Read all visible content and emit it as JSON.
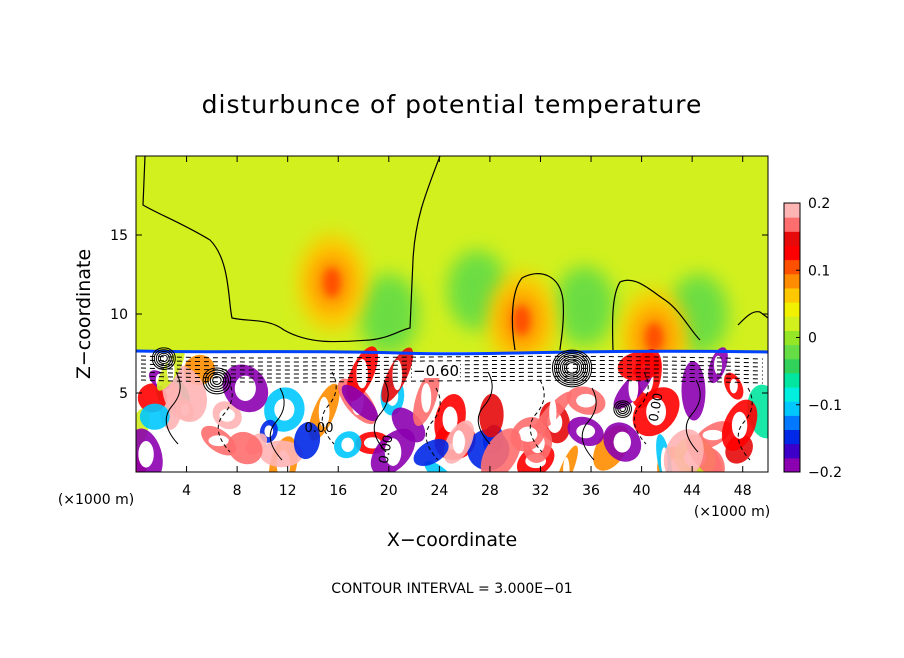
{
  "chart_data": {
    "type": "heatmap",
    "title": "disturbunce of potential temperature",
    "xlabel": "X−coordinate",
    "ylabel": "Z−coordinate",
    "x_unit_left": "(×1000 m)",
    "x_unit_right": "(×1000 m)",
    "footer": "CONTOUR INTERVAL = 3.000E−01",
    "xlim": [
      0,
      50
    ],
    "ylim": [
      0,
      20
    ],
    "x_ticks": [
      4,
      8,
      12,
      16,
      20,
      24,
      28,
      32,
      36,
      40,
      44,
      48
    ],
    "y_ticks": [
      5,
      10,
      15
    ],
    "colorbar": {
      "range": [
        -0.2,
        0.2
      ],
      "ticks": [
        {
          "value": 0.2,
          "label": "0.2"
        },
        {
          "value": 0.1,
          "label": "0.1"
        },
        {
          "value": 0.0,
          "label": "0"
        },
        {
          "value": -0.1,
          "label": "−0.1"
        },
        {
          "value": -0.2,
          "label": "−0.2"
        }
      ],
      "colors": [
        "#8b00b0",
        "#3c00c8",
        "#0028e6",
        "#0078ff",
        "#00c8ff",
        "#00eee0",
        "#00e6a0",
        "#32d25a",
        "#66dd44",
        "#96e628",
        "#d2f01e",
        "#f0f000",
        "#ffc800",
        "#ff8c00",
        "#ff5000",
        "#ff0000",
        "#e60a0a",
        "#ff6e6e",
        "#ffb4b4"
      ]
    },
    "contour_labels": [
      {
        "text": "−0.60",
        "x": 24,
        "z": 6.4
      },
      {
        "text": "0.00",
        "x": 14.5,
        "z": 2.6
      },
      {
        "text": "0.00",
        "x": 20.5,
        "z": 1.5
      },
      {
        "text": "0.00",
        "x": 41.5,
        "z": 4.2
      }
    ],
    "field_features": {
      "upper_layer_background_value": 0.03,
      "warm_blobs": [
        {
          "x": 15.5,
          "z": 12.0,
          "value": 0.07
        },
        {
          "x": 30.5,
          "z": 9.6,
          "value": 0.06
        },
        {
          "x": 41.0,
          "z": 8.5,
          "value": 0.07
        }
      ],
      "cool_blobs": [
        {
          "x": 20.0,
          "z": 10.0,
          "value": -0.02
        },
        {
          "x": 27.0,
          "z": 11.5,
          "value": -0.02
        },
        {
          "x": 35.5,
          "z": 10.5,
          "value": -0.02
        },
        {
          "x": 44.5,
          "z": 10.0,
          "value": -0.02
        }
      ],
      "inversion_height": 7.5
    }
  }
}
